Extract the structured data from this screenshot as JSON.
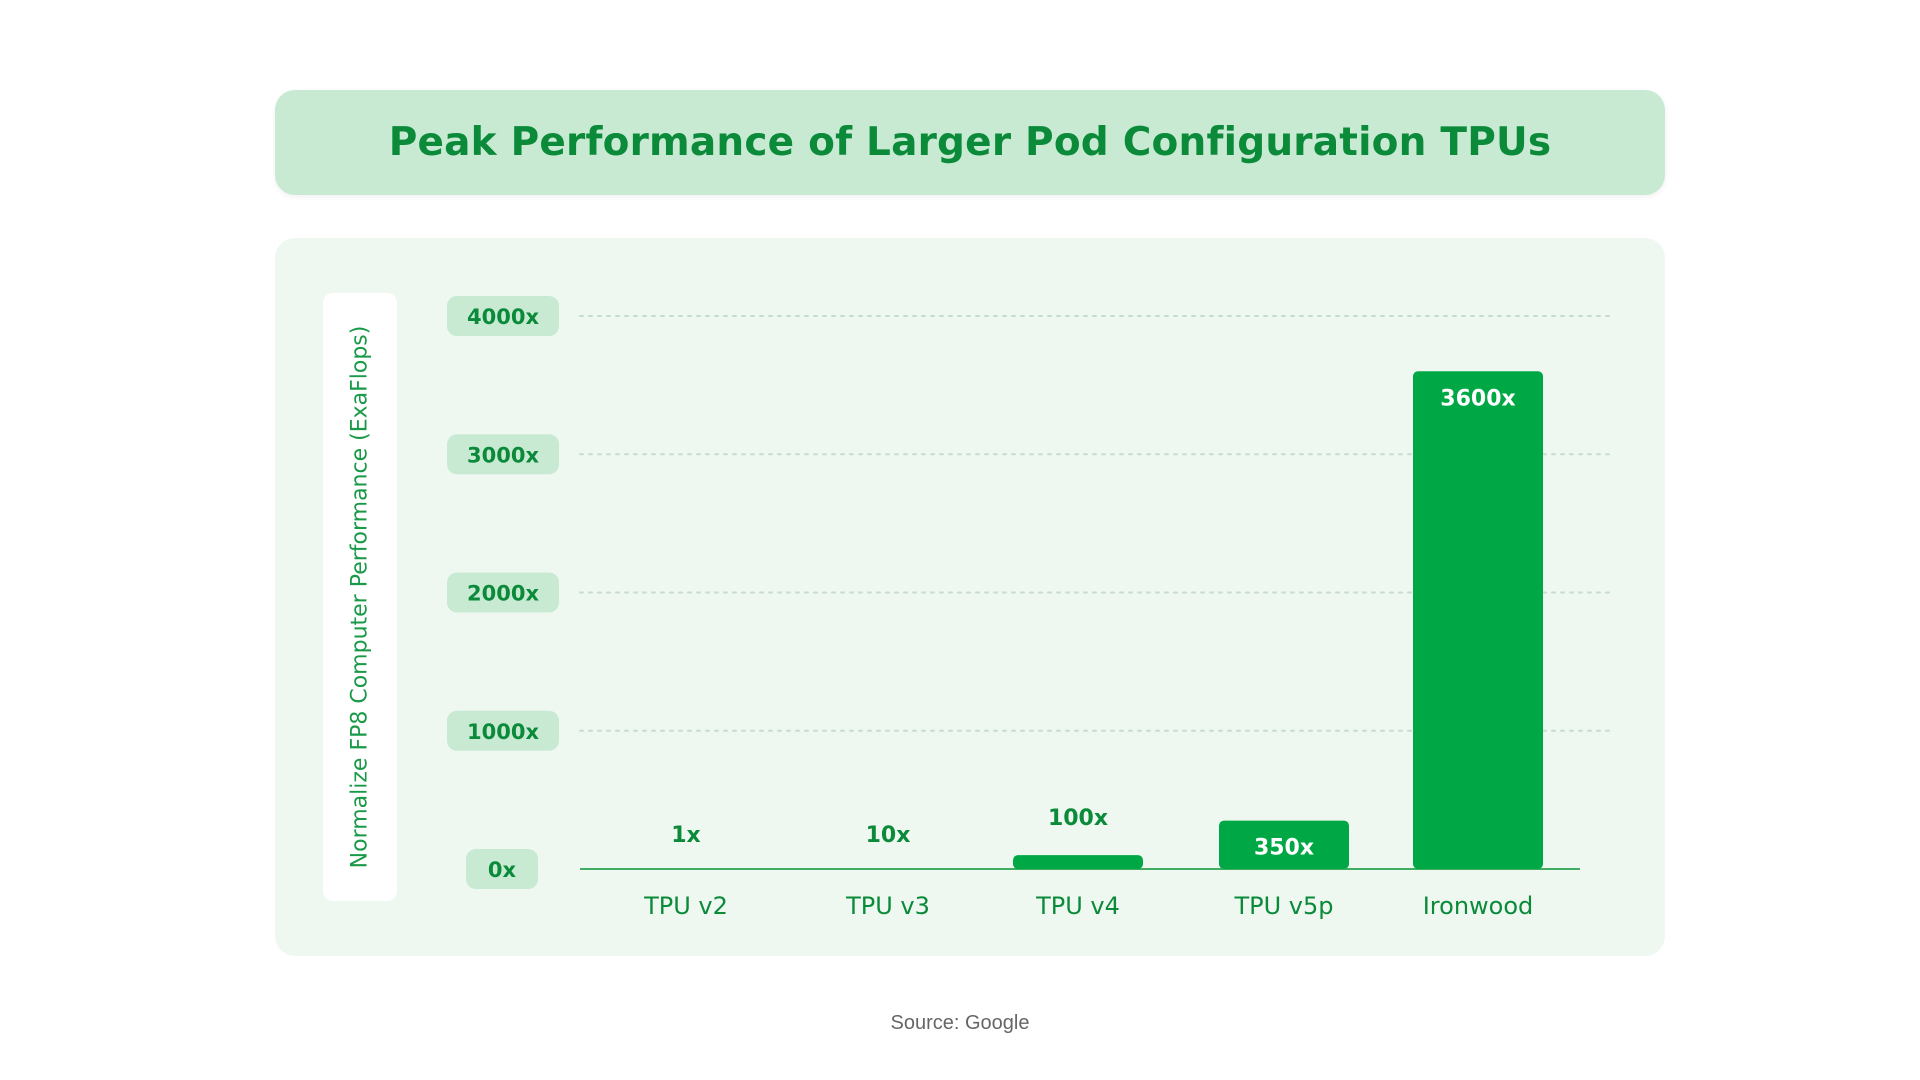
{
  "chart_data": {
    "type": "bar",
    "title": "Peak Performance of Larger Pod Configuration TPUs",
    "ylabel": "Normalize FP8 Computer Performance (ExaFlops)",
    "xlabel": "",
    "categories": [
      "TPU v2",
      "TPU v3",
      "TPU v4",
      "TPU v5p",
      "Ironwood"
    ],
    "values": [
      1,
      10,
      100,
      350,
      3600
    ],
    "value_labels": [
      "1x",
      "10x",
      "100x",
      "350x",
      "3600x"
    ],
    "ylim": [
      0,
      4000
    ],
    "yticks": [
      0,
      1000,
      2000,
      3000,
      4000
    ],
    "ytick_labels": [
      "0x",
      "1000x",
      "2000x",
      "3000x",
      "4000x"
    ],
    "grid": "horizontal dotted",
    "bar_color": "#00a845",
    "text_color": "#0b8a3a"
  },
  "source": "Source: Google"
}
